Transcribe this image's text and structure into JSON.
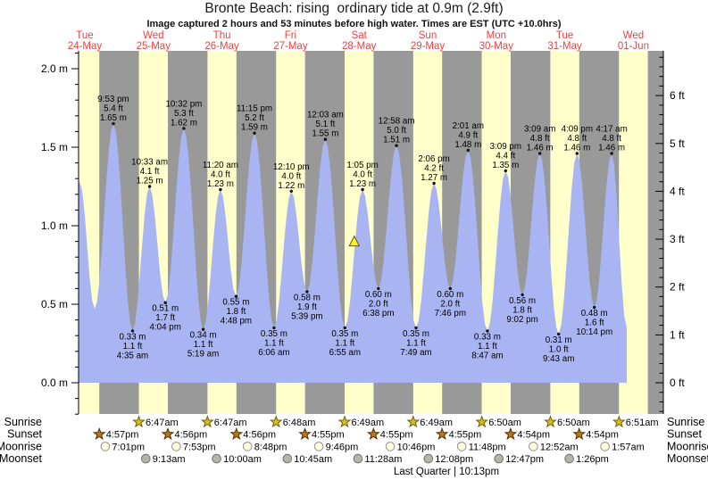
{
  "chart_data": {
    "type": "area",
    "title": "Bronte Beach: rising  ordinary tide at 0.9m (2.9ft)",
    "subtitle": "Image captured 2 hours and 53 minutes before high water. Times are EST (UTC +10.0hrs)",
    "y_axis_left": {
      "unit": "m",
      "major_labels": [
        0.0,
        0.5,
        1.0,
        1.5,
        2.0
      ],
      "minor_step": 0.1,
      "tick_range": [
        -0.2,
        2.1
      ]
    },
    "y_axis_right": {
      "unit": "ft",
      "major_labels": [
        0,
        1,
        2,
        3,
        4,
        5,
        6
      ],
      "minor_step": 0.2,
      "tick_range": [
        -0.6,
        6.8
      ]
    },
    "days": [
      {
        "name": "Tue",
        "date": "24-May"
      },
      {
        "name": "Wed",
        "date": "25-May"
      },
      {
        "name": "Thu",
        "date": "26-May"
      },
      {
        "name": "Fri",
        "date": "27-May"
      },
      {
        "name": "Sat",
        "date": "28-May"
      },
      {
        "name": "Sun",
        "date": "29-May"
      },
      {
        "name": "Mon",
        "date": "30-May"
      },
      {
        "name": "Tue",
        "date": "31-May"
      },
      {
        "name": "Wed",
        "date": "01-Jun"
      }
    ],
    "tide_events": [
      {
        "type": "high",
        "day": 0,
        "hour": 10.05,
        "m": 1.28,
        "labeled": false
      },
      {
        "type": "low",
        "day": 0,
        "hour": 15.3,
        "m": 0.47,
        "labeled": false
      },
      {
        "type": "high",
        "day": 0,
        "hour": 21.883,
        "m": 1.65,
        "ft": 5.4,
        "time": "9:53 pm",
        "labeled": true
      },
      {
        "type": "low",
        "day": 1,
        "hour": 4.583,
        "m": 0.33,
        "ft": 1.1,
        "time": "4:35 am",
        "labeled": true
      },
      {
        "type": "high",
        "day": 1,
        "hour": 10.55,
        "m": 1.25,
        "ft": 4.1,
        "time": "10:33 am",
        "labeled": true
      },
      {
        "type": "low",
        "day": 1,
        "hour": 16.067,
        "m": 0.51,
        "ft": 1.7,
        "time": "4:04 pm",
        "labeled": true
      },
      {
        "type": "high",
        "day": 1,
        "hour": 22.533,
        "m": 1.62,
        "ft": 5.3,
        "time": "10:32 pm",
        "labeled": true
      },
      {
        "type": "low",
        "day": 2,
        "hour": 5.317,
        "m": 0.34,
        "ft": 1.1,
        "time": "5:19 am",
        "labeled": true
      },
      {
        "type": "high",
        "day": 2,
        "hour": 11.333,
        "m": 1.23,
        "ft": 4.0,
        "time": "11:20 am",
        "labeled": true
      },
      {
        "type": "low",
        "day": 2,
        "hour": 16.8,
        "m": 0.55,
        "ft": 1.8,
        "time": "4:48 pm",
        "labeled": true
      },
      {
        "type": "high",
        "day": 2,
        "hour": 23.25,
        "m": 1.59,
        "ft": 5.2,
        "time": "11:15 pm",
        "labeled": true
      },
      {
        "type": "low",
        "day": 3,
        "hour": 6.1,
        "m": 0.35,
        "ft": 1.1,
        "time": "6:06 am",
        "labeled": true
      },
      {
        "type": "high",
        "day": 3,
        "hour": 12.167,
        "m": 1.22,
        "ft": 4.0,
        "time": "12:10 pm",
        "labeled": true
      },
      {
        "type": "low",
        "day": 3,
        "hour": 17.65,
        "m": 0.58,
        "ft": 1.9,
        "time": "5:39 pm",
        "labeled": true
      },
      {
        "type": "high",
        "day": 4,
        "hour": 0.05,
        "m": 1.55,
        "ft": 5.1,
        "time": "12:03 am",
        "labeled": true
      },
      {
        "type": "low",
        "day": 4,
        "hour": 6.917,
        "m": 0.35,
        "ft": 1.1,
        "time": "6:55 am",
        "labeled": true
      },
      {
        "type": "high",
        "day": 4,
        "hour": 13.083,
        "m": 1.23,
        "ft": 4.0,
        "time": "1:05 pm",
        "labeled": true
      },
      {
        "type": "low",
        "day": 4,
        "hour": 18.633,
        "m": 0.6,
        "ft": 2.0,
        "time": "6:38 pm",
        "labeled": true
      },
      {
        "type": "high",
        "day": 5,
        "hour": 0.967,
        "m": 1.51,
        "ft": 5.0,
        "time": "12:58 am",
        "labeled": true
      },
      {
        "type": "low",
        "day": 5,
        "hour": 7.817,
        "m": 0.35,
        "ft": 1.1,
        "time": "7:49 am",
        "labeled": true
      },
      {
        "type": "high",
        "day": 5,
        "hour": 14.1,
        "m": 1.27,
        "ft": 4.2,
        "time": "2:06 pm",
        "labeled": true
      },
      {
        "type": "low",
        "day": 5,
        "hour": 19.767,
        "m": 0.6,
        "ft": 2.0,
        "time": "7:46 pm",
        "labeled": true
      },
      {
        "type": "high",
        "day": 6,
        "hour": 2.017,
        "m": 1.48,
        "ft": 4.9,
        "time": "2:01 am",
        "labeled": true
      },
      {
        "type": "low",
        "day": 6,
        "hour": 8.783,
        "m": 0.33,
        "ft": 1.1,
        "time": "8:47 am",
        "labeled": true
      },
      {
        "type": "high",
        "day": 6,
        "hour": 15.15,
        "m": 1.35,
        "ft": 4.4,
        "time": "3:09 pm",
        "labeled": true
      },
      {
        "type": "low",
        "day": 6,
        "hour": 21.033,
        "m": 0.56,
        "ft": 1.8,
        "time": "9:02 pm",
        "labeled": true
      },
      {
        "type": "high",
        "day": 7,
        "hour": 3.15,
        "m": 1.46,
        "ft": 4.8,
        "time": "3:09 am",
        "labeled": true
      },
      {
        "type": "low",
        "day": 7,
        "hour": 9.717,
        "m": 0.31,
        "ft": 1.0,
        "time": "9:43 am",
        "labeled": true
      },
      {
        "type": "high",
        "day": 7,
        "hour": 16.15,
        "m": 1.46,
        "ft": 4.8,
        "time": "4:09 pm",
        "labeled": true
      },
      {
        "type": "low",
        "day": 7,
        "hour": 22.233,
        "m": 0.48,
        "ft": 1.6,
        "time": "10:14 pm",
        "labeled": true
      },
      {
        "type": "high",
        "day": 8,
        "hour": 4.283,
        "m": 1.46,
        "ft": 4.8,
        "time": "4:17 am",
        "labeled": true
      },
      {
        "type": "low",
        "day": 8,
        "hour": 9.56,
        "m": 0.35,
        "labeled": false
      }
    ],
    "current_tide_marker": {
      "day": 4,
      "hour": 10.2,
      "height_m": 0.9
    },
    "astro_rows": [
      {
        "id": "sunrise",
        "label": "Sunrise",
        "icon": "sunrise-star",
        "events": [
          {
            "day": 1,
            "hour": 6.78,
            "time": "6:47am"
          },
          {
            "day": 2,
            "hour": 6.78,
            "time": "6:47am"
          },
          {
            "day": 3,
            "hour": 6.8,
            "time": "6:48am"
          },
          {
            "day": 4,
            "hour": 6.82,
            "time": "6:49am"
          },
          {
            "day": 5,
            "hour": 6.82,
            "time": "6:49am"
          },
          {
            "day": 6,
            "hour": 6.83,
            "time": "6:50am"
          },
          {
            "day": 7,
            "hour": 6.83,
            "time": "6:50am"
          },
          {
            "day": 8,
            "hour": 6.85,
            "time": "6:51am"
          }
        ]
      },
      {
        "id": "sunset",
        "label": "Sunset",
        "icon": "sunset-star",
        "events": [
          {
            "day": 0,
            "hour": 16.95,
            "time": "4:57pm"
          },
          {
            "day": 1,
            "hour": 16.93,
            "time": "4:56pm"
          },
          {
            "day": 2,
            "hour": 16.93,
            "time": "4:56pm"
          },
          {
            "day": 3,
            "hour": 16.92,
            "time": "4:55pm"
          },
          {
            "day": 4,
            "hour": 16.92,
            "time": "4:55pm"
          },
          {
            "day": 5,
            "hour": 16.92,
            "time": "4:55pm"
          },
          {
            "day": 6,
            "hour": 16.9,
            "time": "4:54pm"
          },
          {
            "day": 7,
            "hour": 16.9,
            "time": "4:54pm"
          }
        ]
      },
      {
        "id": "moonrise",
        "label": "Moonrise",
        "icon": "moonrise-circle",
        "events": [
          {
            "day": 0,
            "hour": 19.02,
            "time": "7:01pm"
          },
          {
            "day": 1,
            "hour": 19.88,
            "time": "7:53pm"
          },
          {
            "day": 2,
            "hour": 20.8,
            "time": "8:48pm"
          },
          {
            "day": 3,
            "hour": 21.77,
            "time": "9:46pm"
          },
          {
            "day": 4,
            "hour": 22.77,
            "time": "10:46pm"
          },
          {
            "day": 5,
            "hour": 23.8,
            "time": "11:48pm"
          },
          {
            "day": 7,
            "hour": 0.87,
            "time": "12:52am"
          },
          {
            "day": 8,
            "hour": 1.95,
            "time": "1:57am"
          }
        ]
      },
      {
        "id": "moonset",
        "label": "Moonset",
        "icon": "moonset-circle",
        "events": [
          {
            "day": 1,
            "hour": 9.22,
            "time": "9:13am"
          },
          {
            "day": 2,
            "hour": 10.0,
            "time": "10:00am"
          },
          {
            "day": 3,
            "hour": 10.75,
            "time": "10:45am"
          },
          {
            "day": 4,
            "hour": 11.47,
            "time": "11:28am"
          },
          {
            "day": 5,
            "hour": 12.13,
            "time": "12:08pm"
          },
          {
            "day": 6,
            "hour": 12.78,
            "time": "12:47pm"
          },
          {
            "day": 7,
            "hour": 13.43,
            "time": "1:26pm"
          }
        ]
      }
    ],
    "moon_phase_text": "Last Quarter | 10:13pm"
  },
  "colors": {
    "day_band": "#ffffcc",
    "night_band": "#999999",
    "tide_fill": "#a9b5f2",
    "day_label": "#f23d3d",
    "axis": "#000000",
    "marker_fill": "#ffee3e",
    "marker_stroke": "#5a5a00",
    "sunrise_fill": "#d2be2a",
    "sunrise_stroke": "#756000",
    "sunset_fill": "#c1761c",
    "sunset_stroke": "#4d3000",
    "moonrise_fill": "#ffffdc",
    "moonrise_stroke": "#909090",
    "moonset_fill": "#b4b4aa",
    "moonset_stroke": "#6f6f6f"
  }
}
